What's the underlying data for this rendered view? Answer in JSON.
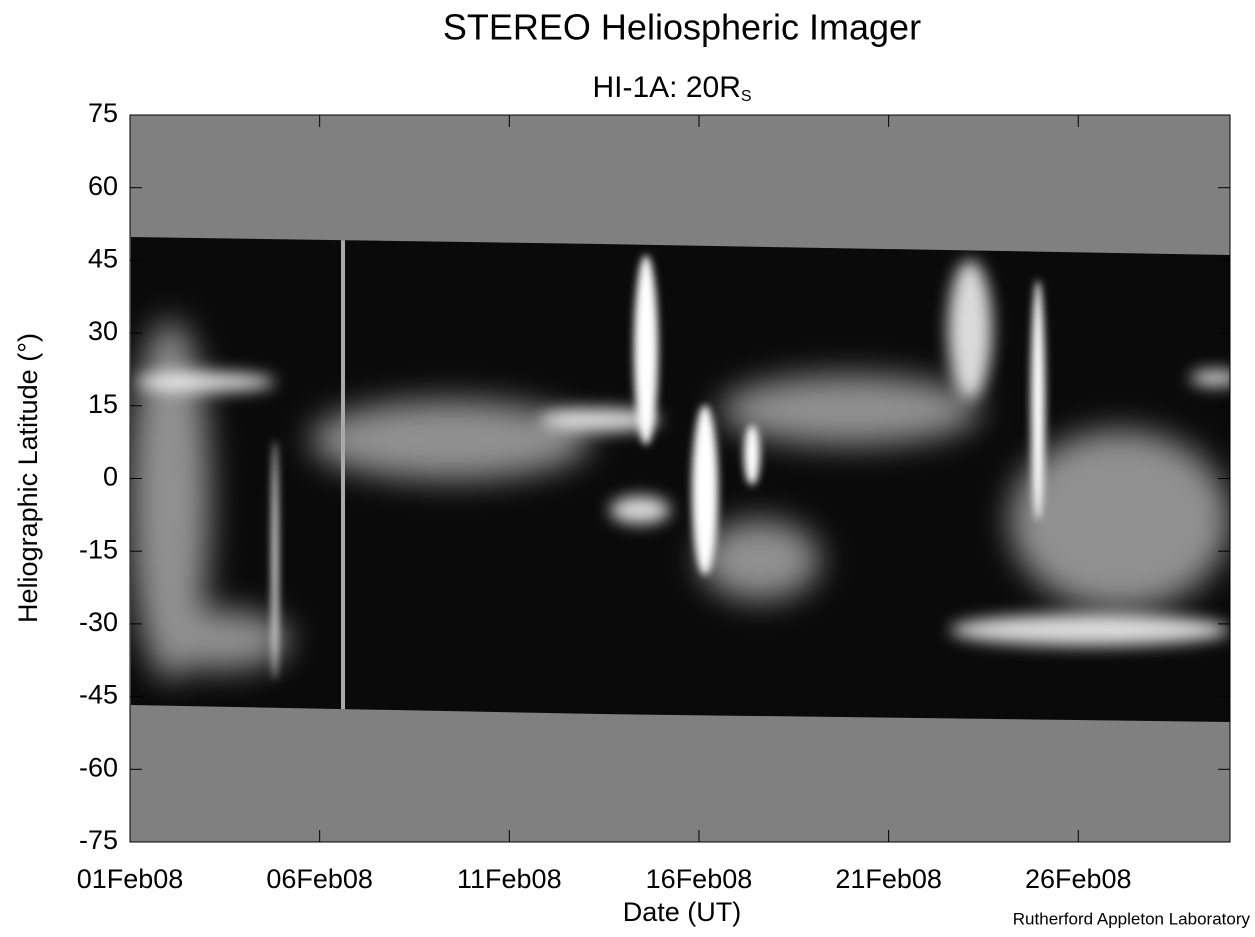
{
  "chart_data": {
    "type": "image",
    "title": "STEREO Heliospheric Imager",
    "subtitle": "HI-1A: 20R",
    "subtitle_subscript": "S",
    "x_label": "Date (UT)",
    "y_label": "Heliographic Latitude (°)",
    "credit": "Rutherford Appleton Laboratory",
    "xlim": [
      "2008-02-01",
      "2008-03-01"
    ],
    "xticks": [
      {
        "value": "2008-02-01",
        "label": "01Feb08"
      },
      {
        "value": "2008-02-06",
        "label": "06Feb08"
      },
      {
        "value": "2008-02-11",
        "label": "11Feb08"
      },
      {
        "value": "2008-02-16",
        "label": "16Feb08"
      },
      {
        "value": "2008-02-21",
        "label": "21Feb08"
      },
      {
        "value": "2008-02-26",
        "label": "26Feb08"
      }
    ],
    "ylim": [
      -75,
      75
    ],
    "yticks": [
      75,
      60,
      45,
      30,
      15,
      0,
      -15,
      -30,
      -45,
      -60,
      -75
    ]
  }
}
